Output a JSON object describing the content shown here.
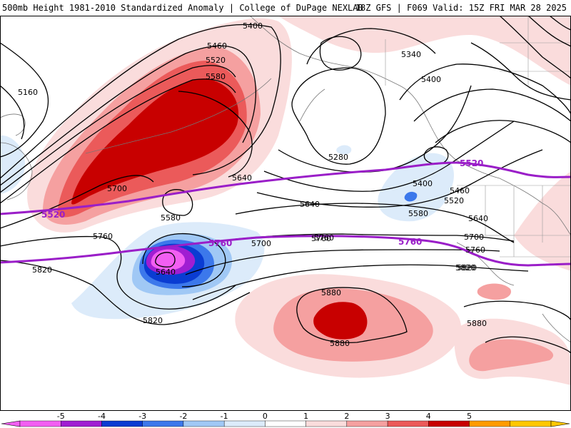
{
  "header": {
    "left": "500mb Height 1981-2010 Standardized Anomaly | College of DuPage NEXLAB",
    "right": "18Z GFS | F069 Valid: 15Z FRI MAR 28 2025"
  },
  "contour_labels": [
    "5400",
    "5460",
    "5520",
    "5580",
    "5160",
    "5640",
    "5700",
    "5580",
    "5760",
    "5820",
    "5760",
    "5700",
    "5640",
    "5760",
    "5820",
    "5640",
    "5820",
    "5280",
    "5340",
    "5400",
    "5400",
    "5460",
    "5520",
    "5580",
    "5640",
    "5700",
    "5760",
    "5820",
    "5880",
    "5880",
    "5880"
  ],
  "highlight_labels": [
    "5520",
    "5520",
    "5760",
    "5760"
  ],
  "colorbar": {
    "ticks": [
      "-5",
      "-4",
      "-3",
      "-2",
      "-1",
      "0",
      "1",
      "2",
      "3",
      "4",
      "5"
    ],
    "colors": [
      "#f25ff2",
      "#a01ed2",
      "#0a3cd2",
      "#3c78eb",
      "#a0c8f5",
      "#dcebfa",
      "#ffffff",
      "#fadcdc",
      "#f5a0a0",
      "#eb5a5a",
      "#c80000",
      "#ff9b00",
      "#ffc800"
    ]
  },
  "icons": {
    "colorbar_ends": "triangle-arrow"
  }
}
